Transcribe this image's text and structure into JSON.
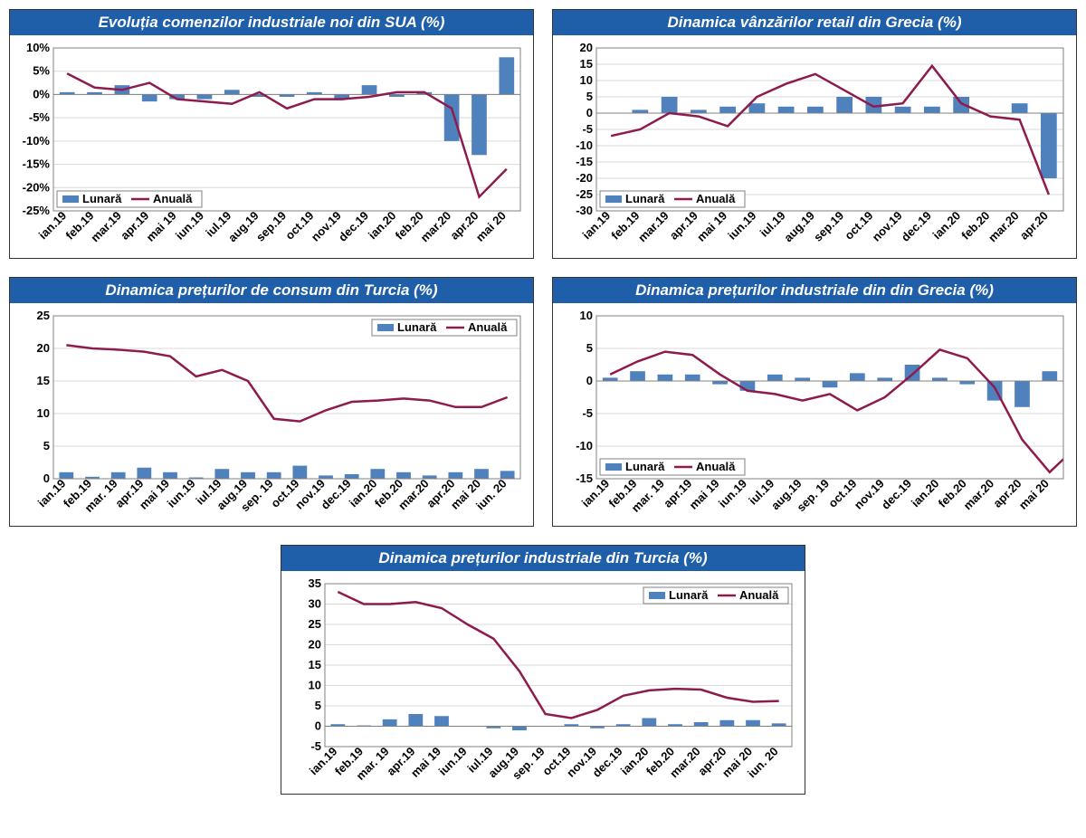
{
  "global": {
    "bar_color": "#4f81bd",
    "line_color": "#8e1b4e",
    "grid_color": "#d9d9d9",
    "frame_color": "#808080",
    "title_bg": "#1f5faa",
    "title_fg": "#ffffff",
    "font_family": "Arial",
    "title_fontsize": 17,
    "axis_fontsize": 13,
    "legend_labels": {
      "bar": "Lunară",
      "line": "Anuală"
    },
    "bar_width_ratio": 0.55,
    "line_width": 2.5
  },
  "charts": [
    {
      "id": "sua",
      "title": "Evoluția comenzilor industriale noi din SUA (%)",
      "categories": [
        "ian.19",
        "feb.19",
        "mar.19",
        "apr.19",
        "mai 19",
        "iun.19",
        "iul.19",
        "aug.19",
        "sep.19",
        "oct.19",
        "nov.19",
        "dec.19",
        "ian.20",
        "feb.20",
        "mar.20",
        "apr.20",
        "mai 20"
      ],
      "bars": [
        0.5,
        0.5,
        2,
        -1.5,
        -1,
        -1,
        1,
        -0.5,
        -0.5,
        0.5,
        -1,
        2,
        -0.5,
        0.5,
        -10,
        -13,
        8
      ],
      "line": [
        4.5,
        1.5,
        1,
        2.5,
        -1,
        -1.5,
        -2,
        0.5,
        -3,
        -1,
        -1,
        -0.5,
        0.5,
        0.5,
        -3,
        -22,
        -16
      ],
      "ylim": [
        -25,
        10
      ],
      "ytick_step": 5,
      "y_suffix": "%",
      "legend_pos": "bottom-left"
    },
    {
      "id": "grecia-retail",
      "title": "Dinamica vânzărilor retail din Grecia (%)",
      "categories": [
        "ian.19",
        "feb.19",
        "mar.19",
        "apr.19",
        "mai 19",
        "iun.19",
        "iul.19",
        "aug.19",
        "sep.19",
        "oct.19",
        "nov.19",
        "dec.19",
        "ian.20",
        "feb.20",
        "mar.20",
        "apr.20"
      ],
      "bars": [
        0,
        1,
        5,
        1,
        2,
        3,
        2,
        2,
        5,
        5,
        2,
        2,
        5,
        0,
        3,
        -20
      ],
      "line": [
        -7,
        -5,
        0,
        -1,
        -4,
        5,
        9,
        12,
        7,
        2,
        3,
        14.5,
        3,
        -1,
        -2,
        -25
      ],
      "ylim": [
        -30,
        20
      ],
      "ytick_step": 5,
      "y_suffix": "",
      "legend_pos": "bottom-left"
    },
    {
      "id": "turcia-consum",
      "title": "Dinamica prețurilor de consum din Turcia (%)",
      "categories": [
        "ian.19",
        "feb.19",
        "mar. 19",
        "apr.19",
        "mai 19",
        "iun.19",
        "iul.19",
        "aug.19",
        "sep. 19",
        "oct.19",
        "nov.19",
        "dec.19",
        "ian.20",
        "feb.20",
        "mar.20",
        "apr.20",
        "mai 20",
        "iun. 20"
      ],
      "bars": [
        1,
        0.3,
        1,
        1.7,
        1,
        0.2,
        1.5,
        1,
        1,
        2,
        0.5,
        0.7,
        1.5,
        1,
        0.5,
        1,
        1.5,
        1.2
      ],
      "line": [
        20.5,
        20,
        19.8,
        19.5,
        18.8,
        15.7,
        16.7,
        15,
        9.2,
        8.8,
        10.5,
        11.8,
        12,
        12.3,
        12,
        11,
        11,
        12.5
      ],
      "ylim": [
        0,
        25
      ],
      "ytick_step": 5,
      "y_suffix": "",
      "legend_pos": "top-right"
    },
    {
      "id": "grecia-industrial",
      "title": "Dinamica prețurilor industriale din din Grecia (%)",
      "categories": [
        "ian.19",
        "feb.19",
        "mar. 19",
        "apr.19",
        "mai 19",
        "iun.19",
        "iul.19",
        "aug.19",
        "sep. 19",
        "oct.19",
        "nov.19",
        "dec.19",
        "ian.20",
        "feb.20",
        "mar.20",
        "apr.20",
        "mai 20"
      ],
      "bars": [
        0.5,
        1.5,
        1,
        1,
        -0.5,
        -1.5,
        1,
        0.5,
        -1,
        1.2,
        0.5,
        2.5,
        0.5,
        -0.5,
        -3,
        -4,
        1.5
      ],
      "line": [
        1,
        3,
        4.5,
        4,
        1,
        -1.5,
        -2,
        -3,
        -2,
        -4.5,
        -2.5,
        1,
        4.8,
        3.5,
        -1,
        -9,
        -14
      ],
      "line_extra": -12,
      "ylim": [
        -15,
        10
      ],
      "ytick_step": 5,
      "y_suffix": "",
      "legend_pos": "bottom-left"
    },
    {
      "id": "turcia-industrial",
      "title": "Dinamica prețurilor industriale din Turcia (%)",
      "categories": [
        "ian.19",
        "feb.19",
        "mar. 19",
        "apr.19",
        "mai 19",
        "iun.19",
        "iul.19",
        "aug.19",
        "sep. 19",
        "oct.19",
        "nov.19",
        "dec.19",
        "ian.20",
        "feb.20",
        "mar.20",
        "apr.20",
        "mai 20",
        "iun. 20"
      ],
      "bars": [
        0.5,
        0.2,
        1.7,
        3,
        2.5,
        0,
        -0.5,
        -1,
        0,
        0.5,
        -0.5,
        0.5,
        2,
        0.5,
        1,
        1.5,
        1.5,
        0.7
      ],
      "line": [
        33,
        30,
        30,
        30.5,
        29,
        25,
        21.5,
        13.5,
        3,
        2,
        4,
        7.5,
        8.8,
        9.2,
        9,
        7,
        6,
        6.2
      ],
      "ylim": [
        -5,
        35
      ],
      "ytick_step": 5,
      "y_suffix": "",
      "legend_pos": "top-right"
    }
  ]
}
